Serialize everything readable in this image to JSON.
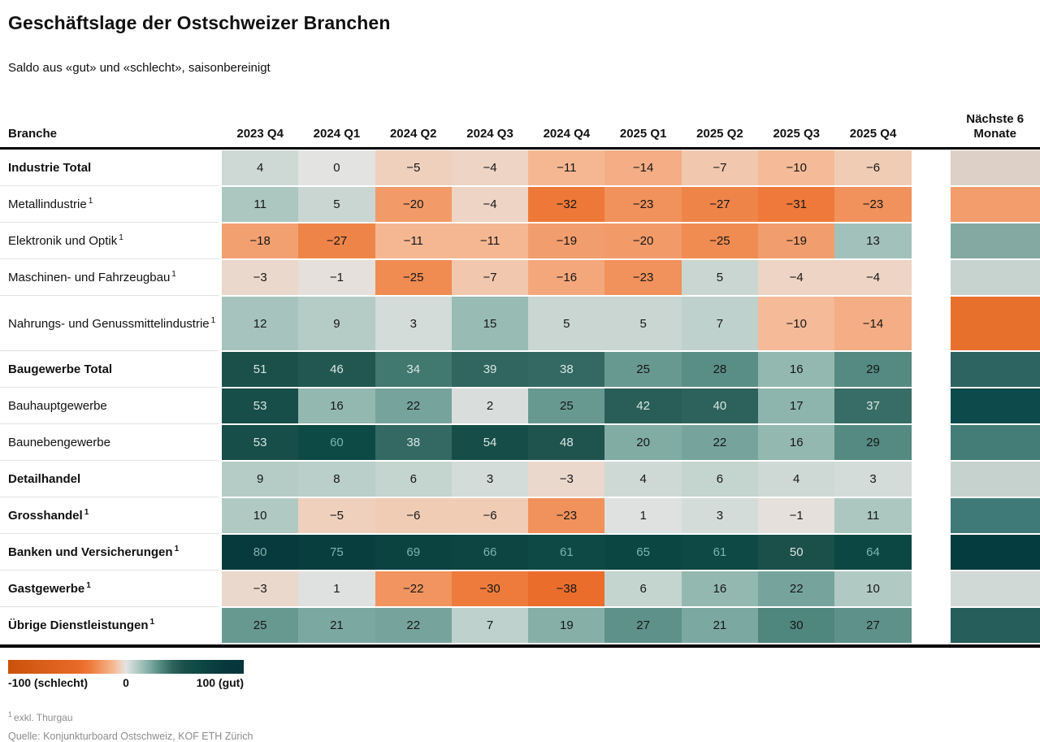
{
  "title": "Geschäftslage der Ostschweizer Branchen",
  "subtitle": "Saldo aus «gut» und «schlecht», saisonbereinigt",
  "table": {
    "branch_header": "Branche",
    "next_header": "Nächste 6 Monate"
  },
  "chart_data": {
    "type": "heatmap",
    "columns": [
      "2023 Q4",
      "2024 Q1",
      "2024 Q2",
      "2024 Q3",
      "2024 Q4",
      "2025 Q1",
      "2025 Q2",
      "2025 Q3",
      "2025 Q4"
    ],
    "extra_column": "Nächste 6 Monate",
    "value_range": [
      -100,
      100
    ],
    "rows": [
      {
        "name": "Industrie Total",
        "bold": true,
        "footnote": false,
        "values": [
          4,
          0,
          -5,
          -4,
          -11,
          -14,
          -7,
          -10,
          -6
        ],
        "next_color": "#ddd0c6"
      },
      {
        "name": "Metallindustrie",
        "bold": false,
        "footnote": true,
        "values": [
          11,
          5,
          -20,
          -4,
          -32,
          -23,
          -27,
          -31,
          -23
        ],
        "next_color": "#f39c6c"
      },
      {
        "name": "Elektronik und Optik",
        "bold": false,
        "footnote": true,
        "values": [
          -18,
          -27,
          -11,
          -11,
          -19,
          -20,
          -25,
          -19,
          13
        ],
        "next_color": "#84a8a2"
      },
      {
        "name": "Maschinen- und Fahrzeugbau",
        "bold": false,
        "footnote": true,
        "values": [
          -3,
          -1,
          -25,
          -7,
          -16,
          -23,
          5,
          -4,
          -4
        ],
        "next_color": "#c6d3cf"
      },
      {
        "name": "Nahrungs- und Genussmittelindustrie",
        "bold": false,
        "footnote": true,
        "tall": true,
        "values": [
          12,
          9,
          3,
          15,
          5,
          5,
          7,
          -10,
          -14
        ],
        "next_color": "#e8702d"
      },
      {
        "name": "Baugewerbe Total",
        "bold": true,
        "footnote": false,
        "values": [
          51,
          46,
          34,
          39,
          38,
          25,
          28,
          16,
          29
        ],
        "next_color": "#2d6360"
      },
      {
        "name": "Bauhauptgewerbe",
        "bold": false,
        "footnote": false,
        "values": [
          53,
          16,
          22,
          2,
          25,
          42,
          40,
          17,
          37
        ],
        "next_color": "#0c4a4b"
      },
      {
        "name": "Baunebengewerbe",
        "bold": false,
        "footnote": false,
        "values": [
          53,
          60,
          38,
          54,
          48,
          20,
          22,
          16,
          29
        ],
        "next_color": "#447d78"
      },
      {
        "name": "Detailhandel",
        "bold": true,
        "footnote": false,
        "values": [
          9,
          8,
          6,
          3,
          -3,
          4,
          6,
          4,
          3
        ],
        "next_color": "#c6d2ce"
      },
      {
        "name": "Grosshandel",
        "bold": true,
        "footnote": true,
        "values": [
          10,
          -5,
          -6,
          -6,
          -23,
          1,
          3,
          -1,
          11
        ],
        "next_color": "#3f7a78"
      },
      {
        "name": "Banken und Versicherungen",
        "bold": true,
        "footnote": true,
        "values": [
          80,
          75,
          69,
          66,
          61,
          65,
          61,
          50,
          64
        ],
        "next_color": "#043c3f"
      },
      {
        "name": "Gastgewerbe",
        "bold": true,
        "footnote": true,
        "values": [
          -3,
          1,
          -22,
          -30,
          -38,
          6,
          16,
          22,
          10
        ],
        "next_color": "#d0d9d5"
      },
      {
        "name": "Übrige Dienstleistungen",
        "bold": true,
        "footnote": true,
        "values": [
          25,
          21,
          22,
          7,
          19,
          27,
          21,
          30,
          27
        ],
        "next_color": "#265e5c"
      }
    ],
    "color_scale": {
      "stops": [
        [
          -100,
          "#c9520a"
        ],
        [
          -40,
          "#e96a28"
        ],
        [
          -30,
          "#ee7b3c"
        ],
        [
          -20,
          "#f29a68"
        ],
        [
          -10,
          "#f5ba97"
        ],
        [
          -5,
          "#efd0bd"
        ],
        [
          0,
          "#e3e4e2"
        ],
        [
          5,
          "#c9d6d2"
        ],
        [
          10,
          "#b0cac3"
        ],
        [
          20,
          "#80aca4"
        ],
        [
          30,
          "#4f867e"
        ],
        [
          40,
          "#2d625c"
        ],
        [
          50,
          "#1b4f4a"
        ],
        [
          60,
          "#0e4a45"
        ],
        [
          80,
          "#073a3c"
        ],
        [
          100,
          "#06353a"
        ]
      ]
    }
  },
  "legend": {
    "min_label": "-100 (schlecht)",
    "mid_label": "0",
    "max_label": "100 (gut)"
  },
  "footnote_symbol": "1",
  "footnote_text": "exkl. Thurgau",
  "source": "Quelle: Konjunkturboard Ostschweiz, KOF ETH Zürich"
}
